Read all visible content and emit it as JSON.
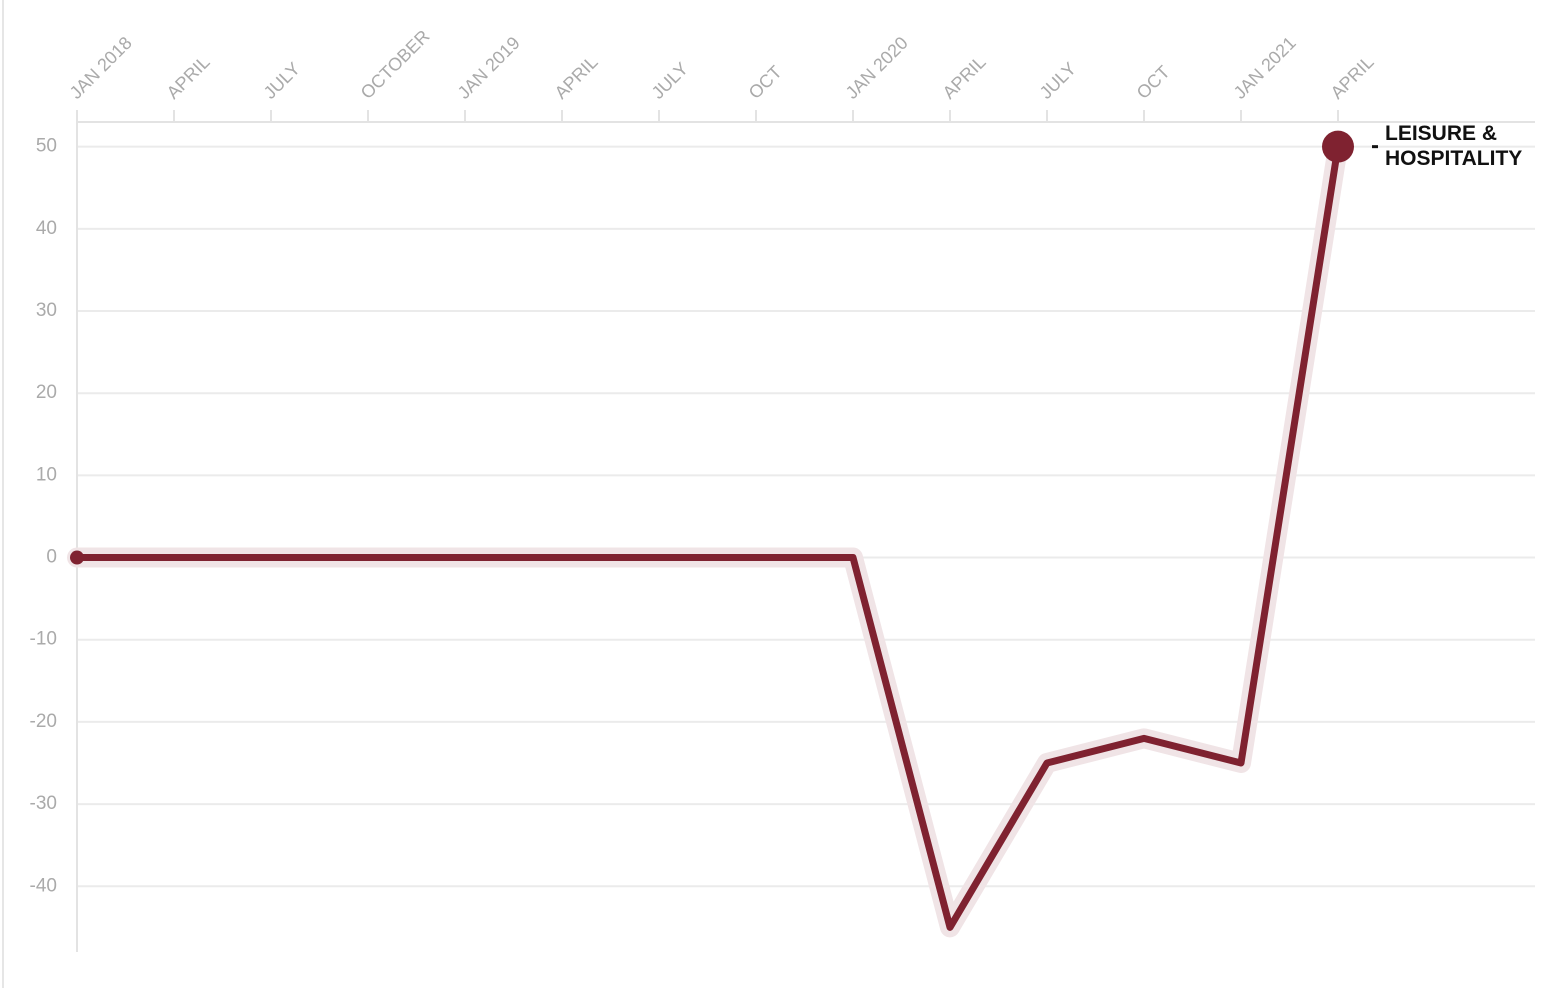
{
  "chart_data": {
    "type": "line",
    "categories": [
      "JAN 2018",
      "APRIL",
      "JULY",
      "OCTOBER",
      "JAN 2019",
      "APRIL",
      "JULY",
      "OCT",
      "JAN 2020",
      "APRIL",
      "JULY",
      "OCT",
      "JAN 2021",
      "APRIL"
    ],
    "series": [
      {
        "name": "LEISURE & HOSPITALITY",
        "color": "#7f2230",
        "values": [
          0,
          0,
          0,
          0,
          0,
          0,
          0,
          0,
          0,
          -45,
          -25,
          -22,
          -25,
          50
        ]
      }
    ],
    "ylim": [
      -48,
      53
    ],
    "yticks": [
      -40,
      -30,
      -20,
      -10,
      0,
      10,
      20,
      30,
      40,
      50
    ],
    "grid": true
  }
}
